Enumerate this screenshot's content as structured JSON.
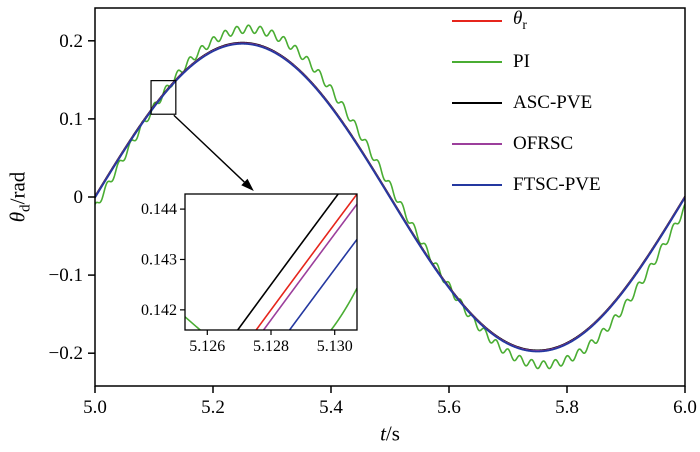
{
  "figure": {
    "background": "#ffffff",
    "frame_color": "#000000"
  },
  "chart_data": {
    "type": "line",
    "title": "",
    "xlabel": "t/s",
    "ylabel": "θd/rad",
    "xlabel_parts": {
      "var": "t",
      "rest": "/s"
    },
    "ylabel_parts": {
      "var": "θ",
      "sub": "d",
      "rest": "/rad"
    },
    "xlim": [
      5.0,
      6.0
    ],
    "ylim": [
      -0.242,
      0.242
    ],
    "x_ticks": [
      5.0,
      5.2,
      5.4,
      5.6,
      5.8,
      6.0
    ],
    "x_tick_labels": [
      "5.0",
      "5.2",
      "5.4",
      "5.6",
      "5.8",
      "6.0"
    ],
    "y_ticks": [
      -0.2,
      -0.1,
      0,
      0.1,
      0.2
    ],
    "y_tick_labels": [
      "−0.2",
      "−0.1",
      "0",
      "0.1",
      "0.2"
    ],
    "grid": false,
    "legend_position": "top-right",
    "legend": [
      {
        "label": "θr",
        "base": "θ",
        "sub": "r",
        "color": "#e6251c"
      },
      {
        "label": "PI",
        "color": "#4aad33"
      },
      {
        "label": "ASC-PVE",
        "color": "#000000"
      },
      {
        "label": "OFRSC",
        "color": "#9c3f9c"
      },
      {
        "label": "FTSC-PVE",
        "color": "#2438a0"
      }
    ],
    "series": [
      {
        "name": "theta_r",
        "color": "#e6251c",
        "amplitude": 0.197,
        "period_s": 1.0,
        "t_zero": 5.0,
        "offset": 0.0001,
        "ripple_amplitude": 0,
        "ripple_freq_hz": 0,
        "ripple_phase": 0
      },
      {
        "name": "PI",
        "color": "#4aad33",
        "amplitude": 0.215,
        "period_s": 1.0,
        "t_zero": 5.0105,
        "offset": 0,
        "ripple_amplitude": 0.005,
        "ripple_freq_hz": 50,
        "ripple_phase": 1.5
      },
      {
        "name": "ASC-PVE",
        "color": "#000000",
        "amplitude": 0.197,
        "period_s": 1.0,
        "t_zero": 5.0,
        "offset": 0.0006,
        "ripple_amplitude": 0,
        "ripple_freq_hz": 0,
        "ripple_phase": 0
      },
      {
        "name": "OFRSC",
        "color": "#9c3f9c",
        "amplitude": 0.197,
        "period_s": 1.0,
        "t_zero": 5.0,
        "offset": -0.0001,
        "ripple_amplitude": 0,
        "ripple_freq_hz": 0,
        "ripple_phase": 0
      },
      {
        "name": "FTSC-PVE",
        "color": "#2438a0",
        "amplitude": 0.197,
        "period_s": 1.0,
        "t_zero": 5.0,
        "offset": -0.0008,
        "ripple_amplitude": 0,
        "ripple_freq_hz": 0,
        "ripple_phase": 0
      }
    ],
    "inset": {
      "xlim": [
        5.1253,
        5.1307
      ],
      "ylim": [
        0.1416,
        0.1443
      ],
      "x_ticks": [
        5.126,
        5.128,
        5.13
      ],
      "x_tick_labels": [
        "5.126",
        "5.128",
        "5.130"
      ],
      "y_ticks": [
        0.142,
        0.143,
        0.144
      ],
      "y_tick_labels": [
        "0.142",
        "0.143",
        "0.144"
      ]
    },
    "zoom_box": {
      "t0": 5.095,
      "t1": 5.137,
      "y0": 0.106,
      "y1": 0.149
    }
  }
}
